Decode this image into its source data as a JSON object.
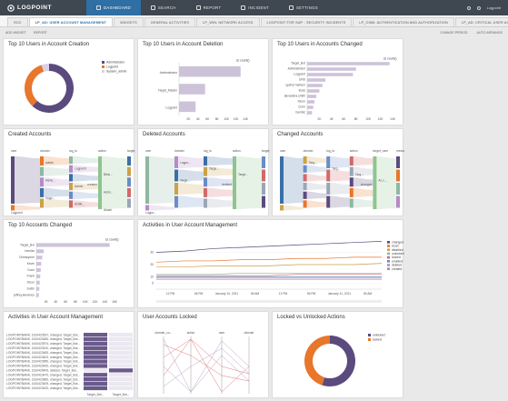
{
  "app": {
    "logo_text": "LOGPOINT"
  },
  "nav": [
    {
      "label": "DASHBOARD",
      "icon": "dashboard-icon",
      "active": true
    },
    {
      "label": "SEARCH",
      "icon": "search-icon"
    },
    {
      "label": "REPORT",
      "icon": "report-icon"
    },
    {
      "label": "INCIDENT",
      "icon": "incident-icon"
    },
    {
      "label": "SETTINGS",
      "icon": "settings-icon"
    }
  ],
  "user": {
    "name": "Logpoint"
  },
  "tabs": [
    {
      "label": "SOC"
    },
    {
      "label": "LP_AD: USER ACCOUNT MANAGEMENT",
      "active": true
    },
    {
      "label": "WIDGETS"
    },
    {
      "label": "GENERAL ACTIVITIES"
    },
    {
      "label": "LP_WIN: NETWORK ACCESS"
    },
    {
      "label": "LOGPOINT FOR SAP - SECURITY INCIDENTS"
    },
    {
      "label": "LP_O365: AUTHENTICATION AND AUTHORIZATION"
    },
    {
      "label": "LP_AD: CRITICAL USER ACTIVITY"
    }
  ],
  "toolbar": {
    "add_widget": "ADD WIDGET",
    "report": "REPORT",
    "change_period": "CHANGE PERIOD",
    "auto_arrange": "AUTO ARRANGE"
  },
  "colors": {
    "purple": "#5b4a7e",
    "orange": "#e8762b",
    "lavender": "#cdc3d9",
    "brand": "#2f6fa3"
  },
  "panels": {
    "creation": {
      "title": "Top 10 Users in Account Creation",
      "legend": [
        "Administrator",
        "Logpoint",
        "System_admin"
      ]
    },
    "deletion": {
      "title": "Top 10 Users in Account Deletion",
      "legend": [
        "count()"
      ],
      "x_ticks": [
        "2K",
        "4K",
        "6K",
        "8K",
        "10K",
        "12K",
        "14K"
      ]
    },
    "changed_top": {
      "title": "Top 10 Users in Accounts Changed",
      "legend": [
        "count()"
      ],
      "x_ticks": [
        "2K",
        "4K",
        "6K",
        "8K",
        "10K",
        "12K",
        "14K"
      ]
    },
    "created_acc": {
      "title": "Created Accounts",
      "cols": [
        "user",
        "domain",
        "log_ts",
        "action",
        "target_user"
      ],
      "node_labels": [
        "admin",
        "Logpoint",
        "Blink...",
        "Mehe...",
        "Admin",
        "Admi...",
        "Yugo...",
        "ADMI...",
        "Akash"
      ],
      "action": "created",
      "bottom": "Logpoint"
    },
    "deleted_acc": {
      "title": "Deleted Accounts",
      "cols": [
        "user",
        "domain",
        "log_ts",
        "action",
        "target_user"
      ],
      "node_labels": [
        "Logpo...",
        "Targe...",
        "Targe...",
        "Targe..."
      ],
      "action": "deleted",
      "bottom": "Logpo..."
    },
    "changed_acc": {
      "title": "Changed Accounts",
      "cols": [
        "user",
        "domain",
        "log_ts",
        "action",
        "target_user",
        "message"
      ],
      "node_labels": [
        "Targ...",
        "Targ...",
        "Targ...",
        "Ac c..."
      ],
      "action": "changed"
    },
    "changed_top10": {
      "title": "Top 10 Accounts Changed",
      "legend": [
        "count()"
      ],
      "x_ticks": [
        "2K",
        "4K",
        "6K",
        "8K",
        "10K",
        "12K",
        "14K",
        "16K"
      ]
    },
    "activities_chart": {
      "title": "Activities in User Account Management",
      "x_ticks": [
        "12 PM",
        "06 PM",
        "January 10, 2021",
        "06 AM",
        "12 PM",
        "06 PM",
        "January 11, 2021",
        "06 AM"
      ],
      "y_ticks": [
        "30",
        "20",
        "10",
        "5"
      ]
    },
    "activities_table": {
      "title": "Activities in User Account Management",
      "footer": [
        "Target_Bot...",
        "Target_Bot..."
      ]
    },
    "locked": {
      "title": "User Accounts Locked",
      "cols": [
        "domain_co...",
        "action",
        "user",
        "domain"
      ]
    },
    "locked_vs": {
      "title": "Locked vs Unlocked Actions",
      "legend": [
        "unlocked",
        "locked"
      ]
    }
  },
  "chart_data": [
    {
      "type": "pie",
      "title": "Top 10 Users in Account Creation",
      "categories": [
        "Administrator",
        "Logpoint",
        "System_admin"
      ],
      "values": [
        62,
        33,
        5
      ]
    },
    {
      "type": "bar",
      "title": "Top 10 Users in Account Deletion",
      "categories": [
        "Administrator",
        "Target_Master",
        "Logpoint"
      ],
      "values": [
        13000,
        5500,
        3500
      ],
      "xlim": [
        0,
        14000
      ]
    },
    {
      "type": "bar",
      "title": "Top 10 Users in Accounts Changed",
      "categories": [
        "Target_Bot",
        "Administrator",
        "Logpoint",
        "UNS",
        "ypshut hamem",
        "Buss",
        "alexandra.smith",
        "Dicon",
        "Conn",
        "bemikz"
      ],
      "values": [
        13500,
        8000,
        7500,
        3000,
        2500,
        2000,
        1500,
        1200,
        1000,
        800
      ],
      "xlim": [
        0,
        14000
      ]
    },
    {
      "type": "bar",
      "title": "Top 10 Accounts Changed",
      "categories": [
        "Target_Bot",
        "bemikz",
        "Christopher",
        "Kevin",
        "Conn",
        "Frank",
        "Dicon",
        "Justin",
        "jeffrey.lawrence"
      ],
      "values": [
        15000,
        1500,
        1200,
        1000,
        900,
        800,
        700,
        600,
        500
      ],
      "xlim": [
        0,
        16000
      ]
    },
    {
      "type": "line",
      "title": "Activities in User Account Management",
      "series": [
        {
          "name": "changed",
          "values": [
            30,
            31,
            33,
            34,
            35,
            36,
            37,
            38,
            39
          ]
        },
        {
          "name": "reset",
          "values": [
            22,
            23,
            23,
            24,
            24,
            25,
            25,
            26,
            26
          ]
        },
        {
          "name": "disabled",
          "values": [
            18,
            18,
            19,
            19,
            19,
            20,
            20,
            20,
            21
          ]
        },
        {
          "name": "unlocked",
          "values": [
            12,
            12,
            12,
            13,
            13,
            13,
            13,
            13,
            13
          ]
        },
        {
          "name": "locked",
          "values": [
            11,
            11,
            11,
            11,
            11,
            12,
            12,
            12,
            12
          ]
        },
        {
          "name": "enabled",
          "values": [
            10,
            10,
            10,
            10,
            10,
            10,
            10,
            10,
            10
          ]
        },
        {
          "name": "deleted",
          "values": [
            9,
            9,
            9,
            9,
            9,
            9,
            9,
            9,
            9
          ]
        },
        {
          "name": "created",
          "values": [
            8,
            8,
            8,
            8,
            8,
            8,
            8,
            8,
            8
          ]
        }
      ]
    },
    {
      "type": "pie",
      "title": "Locked vs Unlocked Actions",
      "categories": [
        "unlocked",
        "locked"
      ],
      "values": [
        55,
        45
      ]
    }
  ],
  "activity_rows": [
    "LOGPOINTBANK, 1610423537, changed, Target_Bot...",
    "LOGPOINTBANK, 1610423480, changed, Target_Bot...",
    "LOGPOINTBANK, 1610423974, changed, Target_Bot...",
    "LOGPOINTBANK, 1610423410, changed, Target_Bot...",
    "LOGPOINTBANK, 1610423483, changed, Target_Bot...",
    "LOGPOINTBANK, 1610423402, changed, Target_Bot...",
    "LOGPOINTBANK, 1610423950, changed, Target_Bot...",
    "LOGPOINTBANK, 1610423420, changed, Target_Bot...",
    "LOGPOINTBANK, 1610425400, deleted, Target_Bot...",
    "LOGPOINTBANK, 1610423470, changed, Target_Bot...",
    "LOGPOINTBANK, 1610423960, changed, Target_Bot...",
    "LOGPOINTBANK, 1610423409, changed, Target_Bot...",
    "LOGPOINTBANK, 1610423432, changed, Target_Bot..."
  ]
}
